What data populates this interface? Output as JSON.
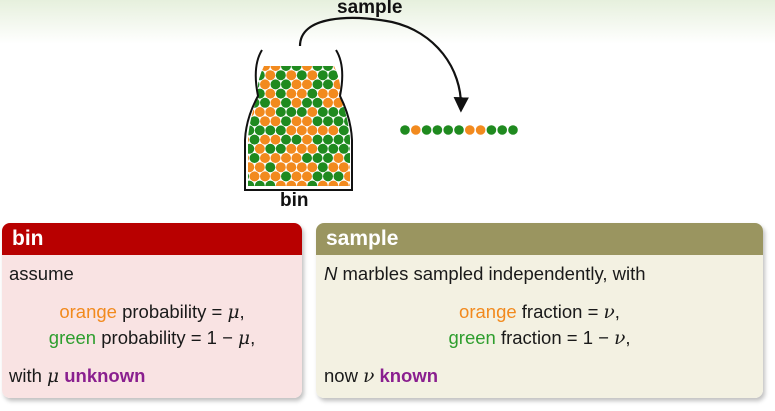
{
  "diagram": {
    "sample_label": "sample",
    "bin_label": "bin",
    "colors": {
      "orange": "#f28a1e",
      "green": "#1f8a1f",
      "line": "#111111"
    },
    "sample_marbles": [
      "green",
      "orange",
      "green",
      "green",
      "green",
      "green",
      "orange",
      "orange",
      "green",
      "green",
      "green"
    ]
  },
  "bin_box": {
    "title": "bin",
    "assume": "assume",
    "orange_word": "orange",
    "orange_rest": " probability = ",
    "mu": "μ",
    "comma": ",",
    "green_word": "green",
    "green_rest": " probability = 1 − ",
    "with_word": "with ",
    "unknown": "unknown",
    "colors": {
      "header": "#b80000",
      "body": "#f9e3e3"
    }
  },
  "sample_box": {
    "title": "sample",
    "n": "N",
    "intro_rest": " marbles sampled independently, with",
    "orange_word": "orange",
    "orange_rest": " fraction = ",
    "nu": "ν",
    "comma": ",",
    "green_word": "green",
    "green_rest": " fraction = 1 − ",
    "now_word": "now ",
    "known": "known",
    "colors": {
      "header": "#9a9560",
      "body": "#f3f1e2"
    }
  }
}
